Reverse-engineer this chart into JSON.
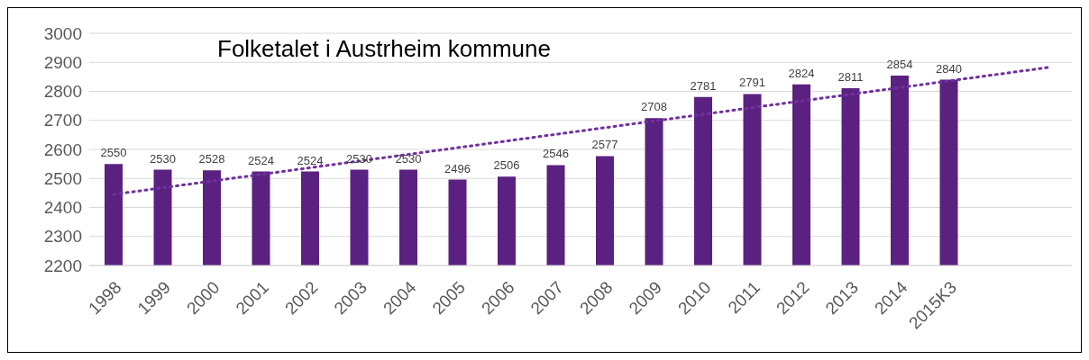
{
  "chart_data": {
    "type": "bar",
    "title": "Folketalet i Austrheim kommune",
    "categories": [
      "1998",
      "1999",
      "2000",
      "2001",
      "2002",
      "2003",
      "2004",
      "2005",
      "2006",
      "2007",
      "2008",
      "2009",
      "2010",
      "2011",
      "2012",
      "2013",
      "2014",
      "2015K3",
      null,
      null
    ],
    "series": [
      {
        "color": "#5b2181",
        "values": [
          2550,
          2530,
          2528,
          2524,
          2524,
          2530,
          2530,
          2496,
          2506,
          2546,
          2577,
          2708,
          2781,
          2791,
          2824,
          2811,
          2854,
          2840,
          null,
          null
        ],
        "data_labels": true
      },
      {
        "type": "line",
        "color": "#7030a0",
        "line_style": "dotted",
        "values": [
          2445,
          2468,
          2491,
          2514,
          2537,
          2560,
          2583,
          2606,
          2629,
          2652,
          2675,
          2698,
          2721,
          2744,
          2767,
          2790,
          2813,
          2836,
          2859,
          2882
        ]
      }
    ],
    "ylim": [
      2200,
      3000
    ],
    "yticks": [
      2200,
      2300,
      2400,
      2500,
      2600,
      2700,
      2800,
      2900,
      3000
    ],
    "grid": "y",
    "legend": false
  }
}
